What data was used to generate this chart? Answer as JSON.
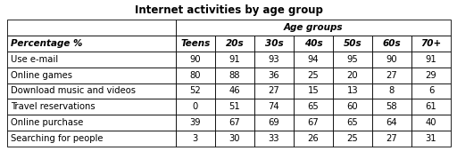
{
  "title": "Internet activities by age group",
  "subheader": "Age groups",
  "col_header": "Percentage %",
  "age_groups": [
    "Teens",
    "20s",
    "30s",
    "40s",
    "50s",
    "60s",
    "70+"
  ],
  "rows": [
    {
      "label": "Use e-mail",
      "values": [
        90,
        91,
        93,
        94,
        95,
        90,
        91
      ]
    },
    {
      "label": "Online games",
      "values": [
        80,
        88,
        36,
        25,
        20,
        27,
        29
      ]
    },
    {
      "label": "Download music and videos",
      "values": [
        52,
        46,
        27,
        15,
        13,
        8,
        6
      ]
    },
    {
      "label": "Travel reservations",
      "values": [
        0,
        51,
        74,
        65,
        60,
        58,
        61
      ]
    },
    {
      "label": "Online purchase",
      "values": [
        39,
        67,
        69,
        67,
        65,
        64,
        40
      ]
    },
    {
      "label": "Searching for people",
      "values": [
        3,
        30,
        33,
        26,
        25,
        27,
        31
      ]
    }
  ],
  "bg_color": "#ffffff",
  "border_color": "#000000",
  "title_fontsize": 8.5,
  "header_fontsize": 7.5,
  "cell_fontsize": 7.2,
  "fig_width": 5.12,
  "fig_height": 1.7,
  "dpi": 100
}
